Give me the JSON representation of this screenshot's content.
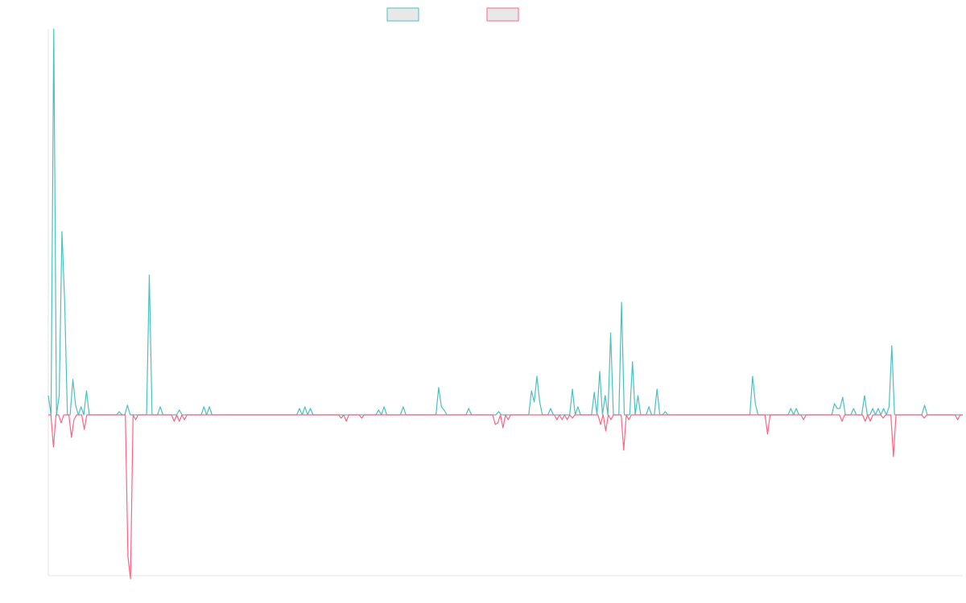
{
  "chart_data": {
    "type": "line",
    "title": "",
    "xlabel": "",
    "ylabel": "",
    "grid": false,
    "legend_position": "top-center",
    "ylim": [
      -100,
      240
    ],
    "series": [
      {
        "name": "",
        "color": "#4bc0c0",
        "values": [
          12,
          0,
          240,
          0,
          12,
          114,
          70,
          0,
          0,
          22,
          6,
          0,
          5,
          0,
          15,
          0,
          0,
          0,
          0,
          0,
          0,
          0,
          0,
          0,
          0,
          0,
          2,
          0,
          0,
          6,
          0,
          0,
          0,
          0,
          0,
          0,
          0,
          87,
          0,
          0,
          0,
          5,
          0,
          0,
          0,
          0,
          0,
          0,
          3,
          0,
          0,
          0,
          0,
          0,
          0,
          0,
          0,
          5,
          0,
          5,
          0,
          0,
          0,
          0,
          0,
          0,
          0,
          0,
          0,
          0,
          0,
          0,
          0,
          0,
          0,
          0,
          0,
          0,
          0,
          0,
          0,
          0,
          0,
          0,
          0,
          0,
          0,
          0,
          0,
          0,
          0,
          0,
          4,
          0,
          5,
          0,
          4,
          0,
          0,
          0,
          0,
          0,
          0,
          0,
          0,
          0,
          0,
          0,
          0,
          0,
          0,
          0,
          0,
          0,
          0,
          0,
          0,
          0,
          0,
          0,
          0,
          3,
          0,
          5,
          0,
          0,
          0,
          0,
          0,
          0,
          5,
          0,
          0,
          0,
          0,
          0,
          0,
          0,
          0,
          0,
          0,
          0,
          0,
          17,
          5,
          3,
          0,
          0,
          0,
          0,
          0,
          0,
          0,
          0,
          4,
          0,
          0,
          0,
          0,
          0,
          0,
          0,
          0,
          0,
          0,
          2,
          0,
          0,
          0,
          0,
          0,
          0,
          0,
          0,
          0,
          0,
          0,
          15,
          8,
          24,
          8,
          0,
          0,
          0,
          4,
          0,
          0,
          0,
          0,
          0,
          0,
          0,
          16,
          0,
          5,
          0,
          0,
          0,
          0,
          0,
          14,
          0,
          27,
          0,
          12,
          0,
          51,
          0,
          0,
          0,
          70,
          0,
          0,
          0,
          33,
          0,
          12,
          0,
          0,
          0,
          5,
          0,
          0,
          16,
          0,
          0,
          2,
          0,
          0,
          0,
          0,
          0,
          0,
          0,
          0,
          0,
          0,
          0,
          0,
          0,
          0,
          0,
          0,
          0,
          0,
          0,
          0,
          0,
          0,
          0,
          0,
          0,
          0,
          0,
          0,
          0,
          0,
          0,
          24,
          7,
          0,
          0,
          0,
          0,
          0,
          0,
          0,
          0,
          0,
          0,
          0,
          0,
          4,
          0,
          4,
          0,
          0,
          0,
          0,
          0,
          0,
          0,
          0,
          0,
          0,
          0,
          0,
          0,
          7,
          4,
          4,
          11,
          0,
          0,
          0,
          4,
          0,
          0,
          0,
          12,
          0,
          0,
          4,
          0,
          4,
          0,
          4,
          0,
          5,
          43,
          0,
          0,
          0,
          0,
          0,
          0,
          0,
          0,
          0,
          0,
          0,
          6,
          0,
          0,
          0,
          0,
          0,
          0,
          0,
          0,
          0,
          0,
          0,
          0,
          0,
          0
        ]
      },
      {
        "name": "",
        "color": "#ff6384",
        "values": [
          0,
          0,
          -20,
          0,
          0,
          -5,
          0,
          0,
          0,
          -14,
          -3,
          0,
          0,
          0,
          -9,
          0,
          0,
          0,
          0,
          0,
          0,
          0,
          0,
          0,
          0,
          0,
          0,
          0,
          0,
          0,
          0,
          -88,
          -102,
          0,
          -3,
          0,
          0,
          0,
          0,
          0,
          0,
          0,
          0,
          0,
          0,
          0,
          0,
          0,
          0,
          -4,
          0,
          -4,
          0,
          -3,
          0,
          0,
          0,
          0,
          0,
          0,
          0,
          0,
          0,
          0,
          0,
          0,
          0,
          0,
          0,
          0,
          0,
          0,
          0,
          0,
          0,
          0,
          0,
          0,
          0,
          0,
          0,
          0,
          0,
          0,
          0,
          0,
          0,
          0,
          0,
          0,
          0,
          0,
          0,
          0,
          0,
          0,
          0,
          0,
          0,
          0,
          0,
          0,
          0,
          0,
          0,
          0,
          0,
          0,
          0,
          0,
          0,
          0,
          0,
          0,
          -2,
          0,
          -4,
          0,
          0,
          0,
          0,
          0,
          -2,
          0,
          0,
          0,
          0,
          0,
          0,
          0,
          0,
          0,
          0,
          0,
          0,
          0,
          0,
          0,
          0,
          0,
          0,
          0,
          0,
          0,
          0,
          0,
          0,
          0,
          0,
          0,
          0,
          0,
          0,
          0,
          0,
          0,
          0,
          0,
          0,
          0,
          0,
          0,
          0,
          0,
          0,
          0,
          0,
          0,
          0,
          0,
          0,
          0,
          0,
          0,
          -6,
          -5,
          0,
          -8,
          0,
          -3,
          0,
          0,
          0,
          0,
          0,
          0,
          0,
          0,
          0,
          0,
          0,
          0,
          0,
          0,
          0,
          0,
          0,
          0,
          -3,
          0,
          -3,
          0,
          -3,
          0,
          -2,
          0,
          0,
          0,
          0,
          0,
          0,
          0,
          0,
          0,
          0,
          -6,
          0,
          -10,
          0,
          -3,
          0,
          0,
          0,
          0,
          -22,
          0,
          -3,
          0,
          0,
          0,
          0,
          0,
          0,
          0,
          0,
          0,
          0,
          0,
          0,
          0,
          0,
          0,
          0,
          0,
          0,
          0,
          0,
          0,
          0,
          0,
          0,
          0,
          0,
          0,
          0,
          0,
          0,
          0,
          0,
          0,
          0,
          0,
          0,
          0,
          0,
          0,
          0,
          0,
          0,
          0,
          0,
          0,
          0,
          0,
          0,
          0,
          0,
          0,
          0,
          0,
          -12,
          0,
          0,
          0,
          0,
          0,
          0,
          0,
          0,
          0,
          0,
          0,
          0,
          0,
          -3,
          0,
          0,
          0,
          0,
          0,
          0,
          0,
          0,
          0,
          0,
          0,
          0,
          0,
          0,
          -4,
          0,
          0,
          0,
          0,
          0,
          0,
          0,
          0,
          -4,
          0,
          -4,
          0,
          0,
          0,
          0,
          -2,
          0,
          0,
          0,
          -26,
          0,
          0,
          0,
          0,
          0,
          0,
          0,
          0,
          0,
          0,
          0,
          -2,
          0,
          0,
          0,
          0,
          0,
          0,
          0,
          0,
          0,
          0,
          0,
          0,
          -3,
          0,
          0
        ]
      }
    ]
  }
}
